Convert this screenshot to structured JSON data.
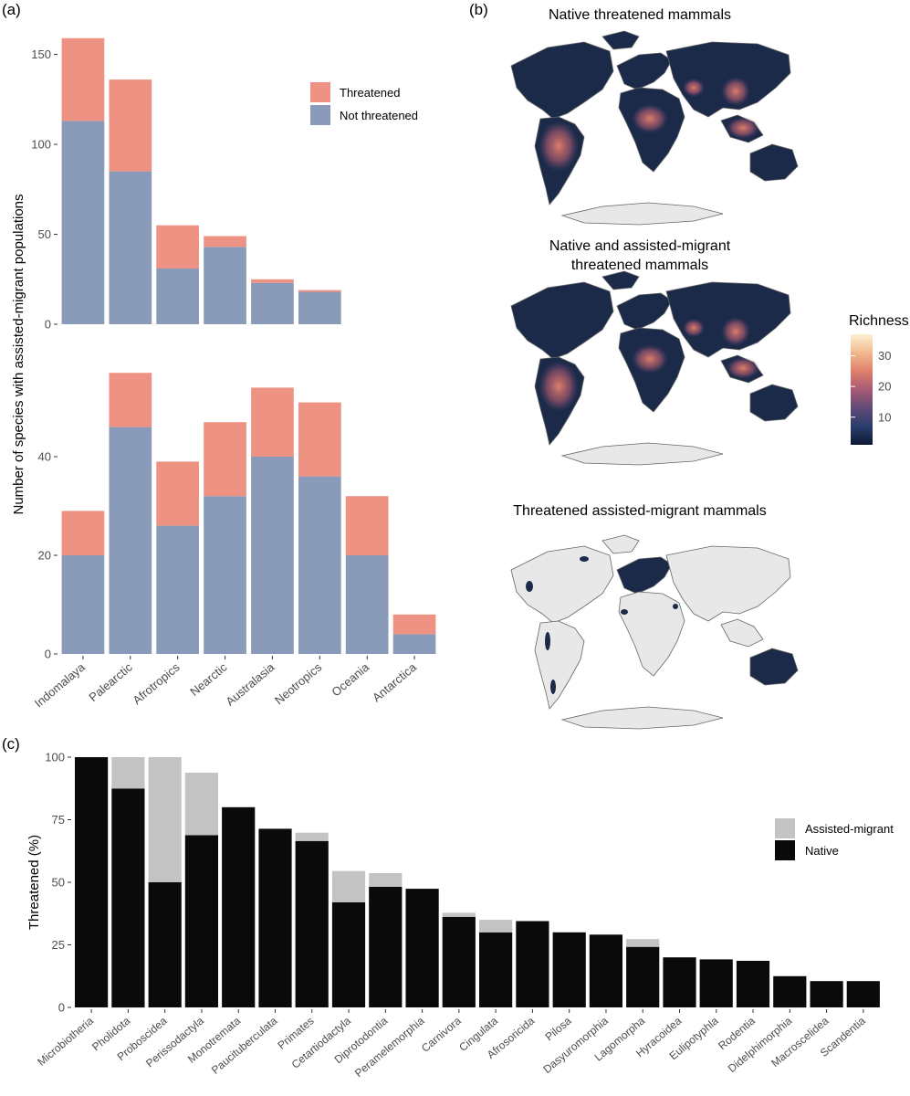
{
  "colors": {
    "threatened": "#EE9283",
    "not_threatened": "#8A9AB9",
    "assisted_migrant": "#C3C3C3",
    "native": "#0A0A0A",
    "axis_text": "#4D4D4D",
    "map_land_grey": "#E8E8E8",
    "map_dark": "#1B2A48"
  },
  "panel_labels": {
    "a": "(a)",
    "b": "(b)",
    "c": "(c)"
  },
  "panel_a": {
    "ylabel": "Number of species with assisted-migrant populations",
    "legend": {
      "threatened": "Threatened",
      "not_threatened": "Not threatened"
    }
  },
  "panel_b": {
    "map_titles": [
      "Native threatened mammals",
      "Native and assisted-migrant",
      "threatened mammals",
      "Threatened assisted-migrant mammals"
    ],
    "legend_title": "Richness",
    "legend_ticks": [
      "30",
      "20",
      "10"
    ],
    "legend_tick_values": [
      30,
      20,
      10
    ],
    "legend_range": [
      1,
      37
    ],
    "legend_palette": [
      "#0B1A37",
      "#2B3D6B",
      "#5F4A78",
      "#A85A74",
      "#E0806A",
      "#F2B88E",
      "#FAF0D2"
    ]
  },
  "chart_data": [
    {
      "type": "bar",
      "stacked": true,
      "categories": [
        "Indomalaya",
        "Palearctic",
        "Afrotropics",
        "Nearctic",
        "Australasia",
        "Neotropics",
        "Oceania",
        "Antarctica"
      ],
      "series": [
        {
          "name": "Not threatened",
          "values": [
            113,
            85,
            31,
            43,
            23,
            18,
            0,
            0
          ]
        },
        {
          "name": "Threatened",
          "values": [
            46,
            51,
            24,
            6,
            2,
            1,
            0,
            0
          ]
        }
      ],
      "ylim": [
        0,
        165
      ],
      "yticks": [
        0,
        50,
        100,
        150
      ],
      "ytick_labels": [
        "0",
        "50",
        "100",
        "150"
      ],
      "legend_position": "top-right"
    },
    {
      "type": "bar",
      "stacked": true,
      "categories": [
        "Indomalaya",
        "Palearctic",
        "Afrotropics",
        "Nearctic",
        "Australasia",
        "Neotropics",
        "Oceania",
        "Antarctica"
      ],
      "series": [
        {
          "name": "Not threatened",
          "values": [
            20,
            46,
            26,
            32,
            40,
            36,
            20,
            4
          ]
        },
        {
          "name": "Threatened",
          "values": [
            9,
            11,
            13,
            15,
            14,
            15,
            12,
            4
          ]
        }
      ],
      "ylim": [
        0,
        60
      ],
      "yticks": [
        0,
        20,
        40
      ],
      "ytick_labels": [
        "0",
        "20",
        "40"
      ]
    },
    {
      "type": "bar",
      "stacked": true,
      "ylabel": "Threatened (%)",
      "categories": [
        "Microbiotheria",
        "Pholidota",
        "Proboscidea",
        "Perissodactyla",
        "Monotremata",
        "Paucituberculata",
        "Primates",
        "Cetartiodactyla",
        "Diprotodontia",
        "Peramelemorphia",
        "Carnivora",
        "Cingulata",
        "Afrosoricida",
        "Pilosa",
        "Dasyuromorphia",
        "Lagomorpha",
        "Hyracoidea",
        "Eulipotyphla",
        "Rodentia",
        "Didelphimorphia",
        "Macroscelidea",
        "Scandentia"
      ],
      "series": [
        {
          "name": "Native",
          "values": [
            100,
            87.5,
            50,
            68.8,
            80,
            71.4,
            66.5,
            42,
            48.2,
            47.4,
            36.2,
            30,
            34.5,
            30,
            29.1,
            24.2,
            20,
            19.2,
            18.6,
            12.5,
            10.5,
            10.5
          ]
        },
        {
          "name": "Assisted-migrant",
          "values": [
            0,
            12.5,
            50,
            25,
            0,
            0,
            3.3,
            12.5,
            5.5,
            0,
            1.6,
            5,
            0,
            0,
            0,
            3.1,
            0,
            0,
            0,
            0,
            0,
            0
          ]
        }
      ],
      "ylim": [
        0,
        100
      ],
      "yticks": [
        0,
        25,
        50,
        75,
        100
      ],
      "ytick_labels": [
        "0",
        "25",
        "50",
        "75",
        "100"
      ],
      "legend": [
        "Assisted-migrant",
        "Native"
      ],
      "legend_position": "right"
    }
  ]
}
